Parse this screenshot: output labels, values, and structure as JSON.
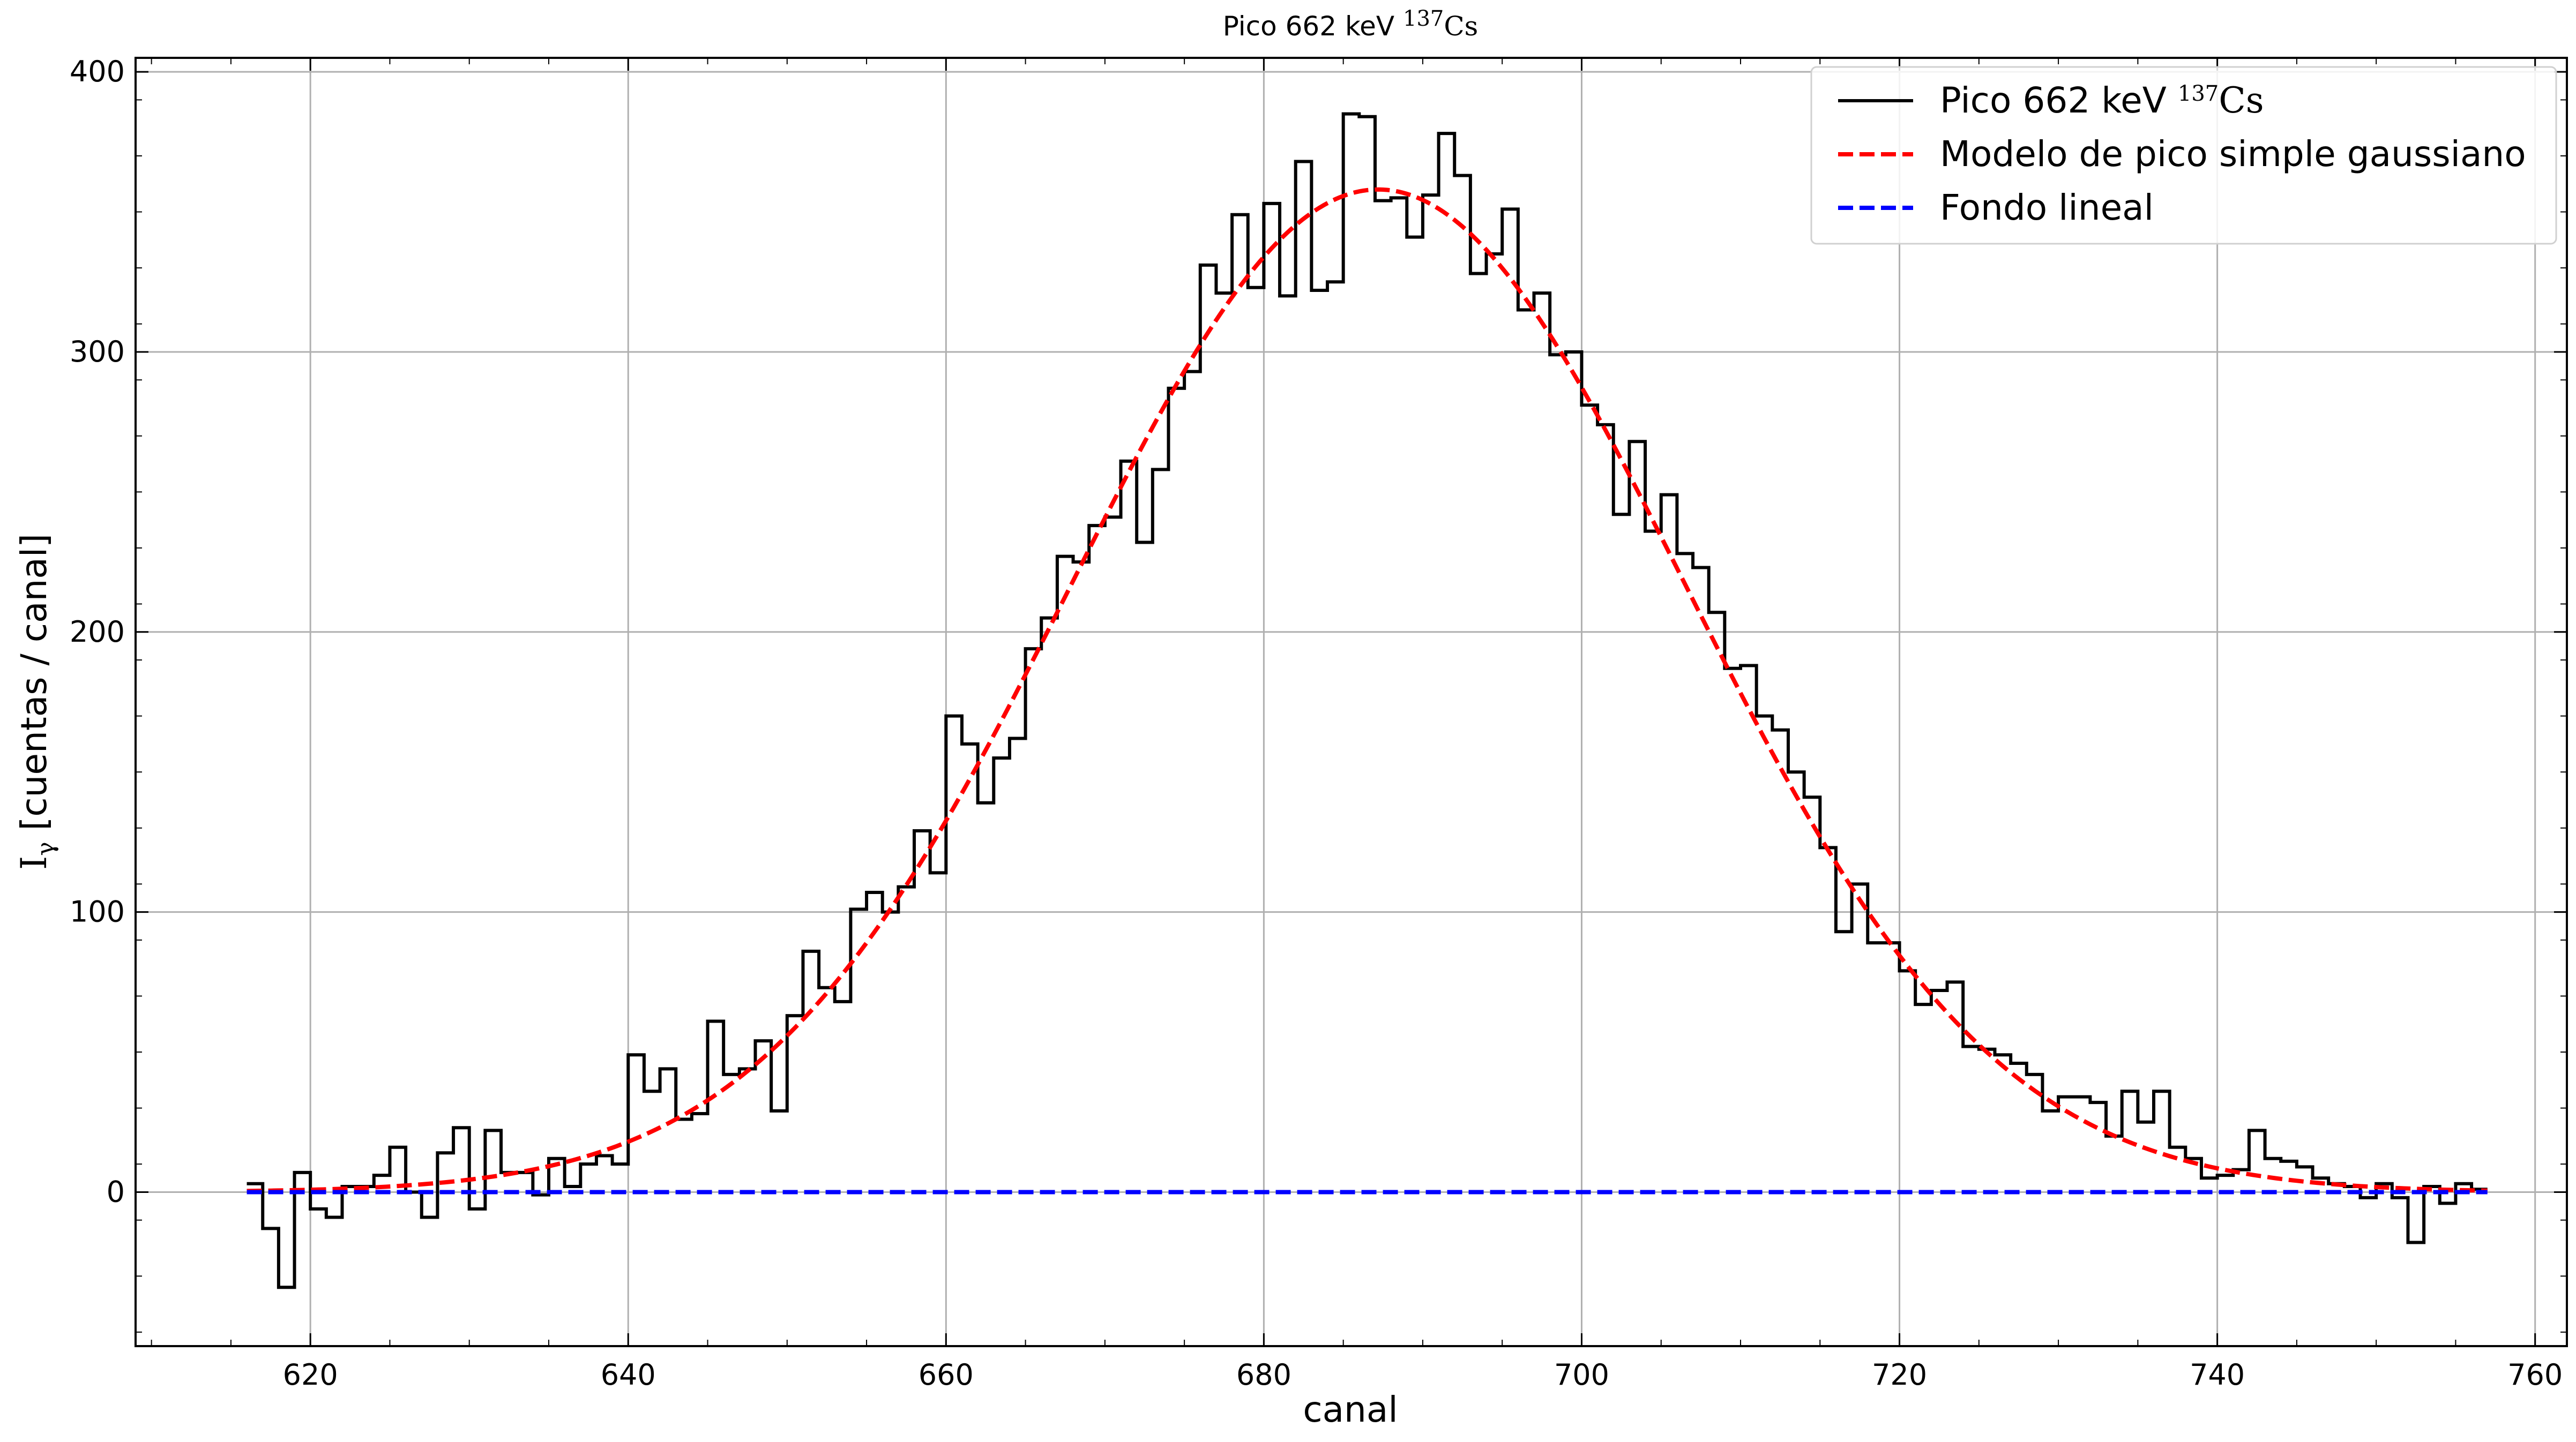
{
  "chart_data": {
    "type": "line",
    "title": "Pico 662 keV ¹³⁷Cs",
    "title_main": "Pico 662 keV",
    "title_iso_mass": "137",
    "title_iso_elem": "Cs",
    "xlabel": "canal",
    "ylabel_symbol": "I",
    "ylabel_sub": "γ",
    "ylabel_text": " [cuentas / canal]",
    "xlim": [
      609,
      762
    ],
    "ylim": [
      -55,
      405
    ],
    "xticks": [
      620,
      640,
      660,
      680,
      700,
      720,
      740,
      760
    ],
    "yticks": [
      0,
      100,
      200,
      300,
      400
    ],
    "grid": true,
    "legend_position": "top-right",
    "series": [
      {
        "name": "Pico 662 keV ¹³⁷Cs",
        "name_main": "Pico 662 keV",
        "name_iso_mass": "137",
        "name_iso_elem": "Cs",
        "style": "step",
        "color": "#000000",
        "x": [
          616,
          617,
          618,
          619,
          620,
          621,
          622,
          623,
          624,
          625,
          626,
          627,
          628,
          629,
          630,
          631,
          632,
          633,
          634,
          635,
          636,
          637,
          638,
          639,
          640,
          641,
          642,
          643,
          644,
          645,
          646,
          647,
          648,
          649,
          650,
          651,
          652,
          653,
          654,
          655,
          656,
          657,
          658,
          659,
          660,
          661,
          662,
          663,
          664,
          665,
          666,
          667,
          668,
          669,
          670,
          671,
          672,
          673,
          674,
          675,
          676,
          677,
          678,
          679,
          680,
          681,
          682,
          683,
          684,
          685,
          686,
          687,
          688,
          689,
          690,
          691,
          692,
          693,
          694,
          695,
          696,
          697,
          698,
          699,
          700,
          701,
          702,
          703,
          704,
          705,
          706,
          707,
          708,
          709,
          710,
          711,
          712,
          713,
          714,
          715,
          716,
          717,
          718,
          719,
          720,
          721,
          722,
          723,
          724,
          725,
          726,
          727,
          728,
          729,
          730,
          731,
          732,
          733,
          734,
          735,
          736,
          737,
          738,
          739,
          740,
          741,
          742,
          743,
          744,
          745,
          746,
          747,
          748,
          749,
          750,
          751,
          752,
          753,
          754,
          755,
          756
        ],
        "y": [
          3,
          -13,
          -34,
          7,
          -6,
          -9,
          2,
          2,
          6,
          16,
          0,
          -9,
          14,
          23,
          -6,
          22,
          7,
          7,
          -1,
          12,
          2,
          10,
          13,
          10,
          49,
          36,
          44,
          26,
          28,
          61,
          42,
          44,
          54,
          29,
          63,
          86,
          73,
          68,
          101,
          107,
          100,
          109,
          129,
          114,
          170,
          160,
          139,
          155,
          162,
          194,
          205,
          227,
          225,
          238,
          241,
          261,
          232,
          258,
          287,
          293,
          331,
          321,
          349,
          323,
          353,
          320,
          368,
          322,
          325,
          385,
          384,
          354,
          355,
          341,
          356,
          378,
          363,
          328,
          335,
          351,
          315,
          321,
          299,
          300,
          281,
          274,
          242,
          268,
          236,
          249,
          228,
          223,
          207,
          187,
          188,
          170,
          165,
          150,
          141,
          123,
          93,
          110,
          89,
          89,
          79,
          67,
          72,
          75,
          52,
          51,
          49,
          46,
          42,
          29,
          34,
          34,
          32,
          20,
          36,
          25,
          36,
          16,
          12,
          5,
          6,
          8,
          22,
          12,
          11,
          9,
          5,
          3,
          2,
          -2,
          3,
          -2,
          -18,
          2,
          -4,
          3,
          1
        ]
      },
      {
        "name": "Modelo de pico simple gaussiano",
        "style": "dashed",
        "color": "#ff0000",
        "model": "gaussian",
        "amplitude": 358,
        "center": 687.2,
        "sigma": 19.3,
        "x_range": [
          616,
          757
        ]
      },
      {
        "name": "Fondo lineal",
        "style": "dashed",
        "color": "#0000ff",
        "model": "constant",
        "value": 0,
        "x_range": [
          616,
          757
        ]
      }
    ]
  }
}
